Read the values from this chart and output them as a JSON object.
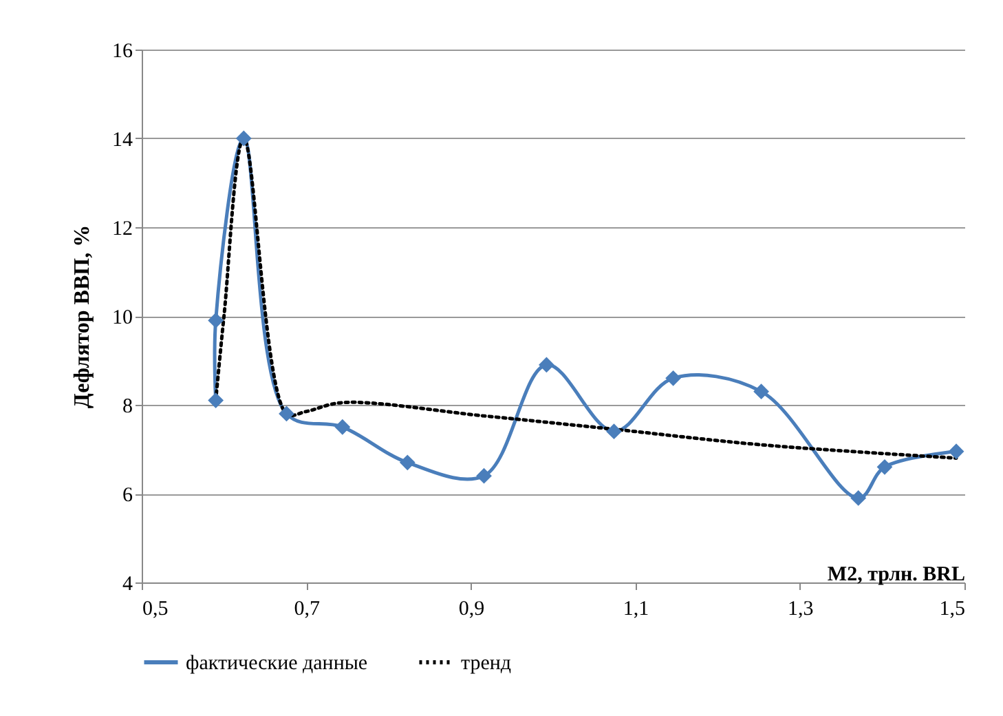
{
  "chart_data": {
    "type": "line",
    "ylabel": "Дефлятор ВВП, %",
    "xlabel": "M2, трлн. BRL",
    "xlim": [
      0.5,
      1.5
    ],
    "xticks": [
      {
        "value": 0.5,
        "label": "0,5"
      },
      {
        "value": 0.7,
        "label": "0,7"
      },
      {
        "value": 0.9,
        "label": "0,9"
      },
      {
        "value": 1.1,
        "label": "1,1"
      },
      {
        "value": 1.3,
        "label": "1,3"
      },
      {
        "value": 1.5,
        "label": "1,5"
      }
    ],
    "ylim": [
      4,
      16
    ],
    "yticks": [
      4,
      6,
      8,
      10,
      12,
      14,
      16
    ],
    "grid": "y",
    "legend": "bottom",
    "series": [
      {
        "name": "фактические данные",
        "color": "#4a7ebb",
        "marker": "diamond",
        "line_style": "solid",
        "x": [
          0.59,
          0.59,
          0.624,
          0.676,
          0.744,
          0.823,
          0.916,
          0.992,
          1.074,
          1.146,
          1.253,
          1.371,
          1.403,
          1.49
        ],
        "values": [
          8.1,
          9.9,
          14.0,
          7.8,
          7.5,
          6.7,
          6.4,
          8.9,
          7.4,
          8.6,
          8.3,
          5.9,
          6.6,
          6.95
        ]
      },
      {
        "name": "тренд",
        "color": "#000000",
        "marker": "none",
        "line_style": "dotted",
        "x": [
          0.59,
          0.6,
          0.624,
          0.676,
          0.7,
          0.744,
          0.916,
          1.074,
          1.253,
          1.49
        ],
        "values": [
          8.1,
          10.0,
          14.0,
          7.8,
          7.85,
          8.05,
          7.75,
          7.45,
          7.1,
          6.8
        ]
      }
    ]
  }
}
